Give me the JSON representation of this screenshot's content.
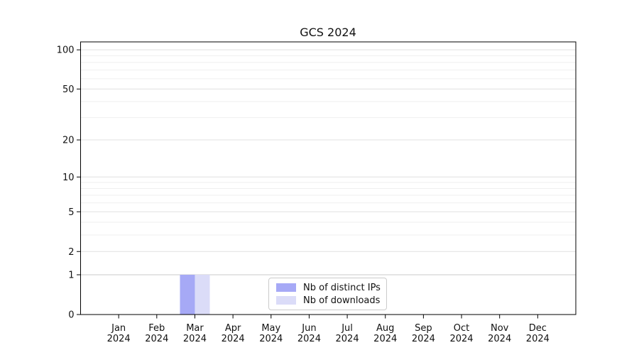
{
  "chart_data": {
    "type": "bar",
    "title": "GCS 2024",
    "categories": [
      "Jan 2024",
      "Feb 2024",
      "Mar 2024",
      "Apr 2024",
      "May 2024",
      "Jun 2024",
      "Jul 2024",
      "Aug 2024",
      "Sep 2024",
      "Oct 2024",
      "Nov 2024",
      "Dec 2024"
    ],
    "series": [
      {
        "name": "Nb of distinct IPs",
        "color": "#a6a9f6",
        "values": [
          0,
          0,
          1,
          0,
          0,
          0,
          0,
          0,
          0,
          0,
          0,
          0
        ]
      },
      {
        "name": "Nb of downloads",
        "color": "#dbdcf8",
        "values": [
          0,
          0,
          1,
          0,
          0,
          0,
          0,
          0,
          0,
          0,
          0,
          0
        ]
      }
    ],
    "xlabel": "",
    "ylabel": "",
    "y_scale": "log1p",
    "ylim": [
      0,
      115
    ],
    "y_ticks": [
      0,
      1,
      2,
      5,
      10,
      20,
      50,
      100
    ],
    "y_minor_gridlines": [
      3,
      4,
      6,
      7,
      8,
      9,
      30,
      40,
      60,
      70,
      80,
      90
    ],
    "grid": true,
    "legend_position": "lower center",
    "colors": {
      "grid_minor": "#efefef",
      "grid_major": "#e0e0e0",
      "unit_line": "#c8c8c8",
      "axis": "#000000",
      "text": "#111111"
    }
  }
}
